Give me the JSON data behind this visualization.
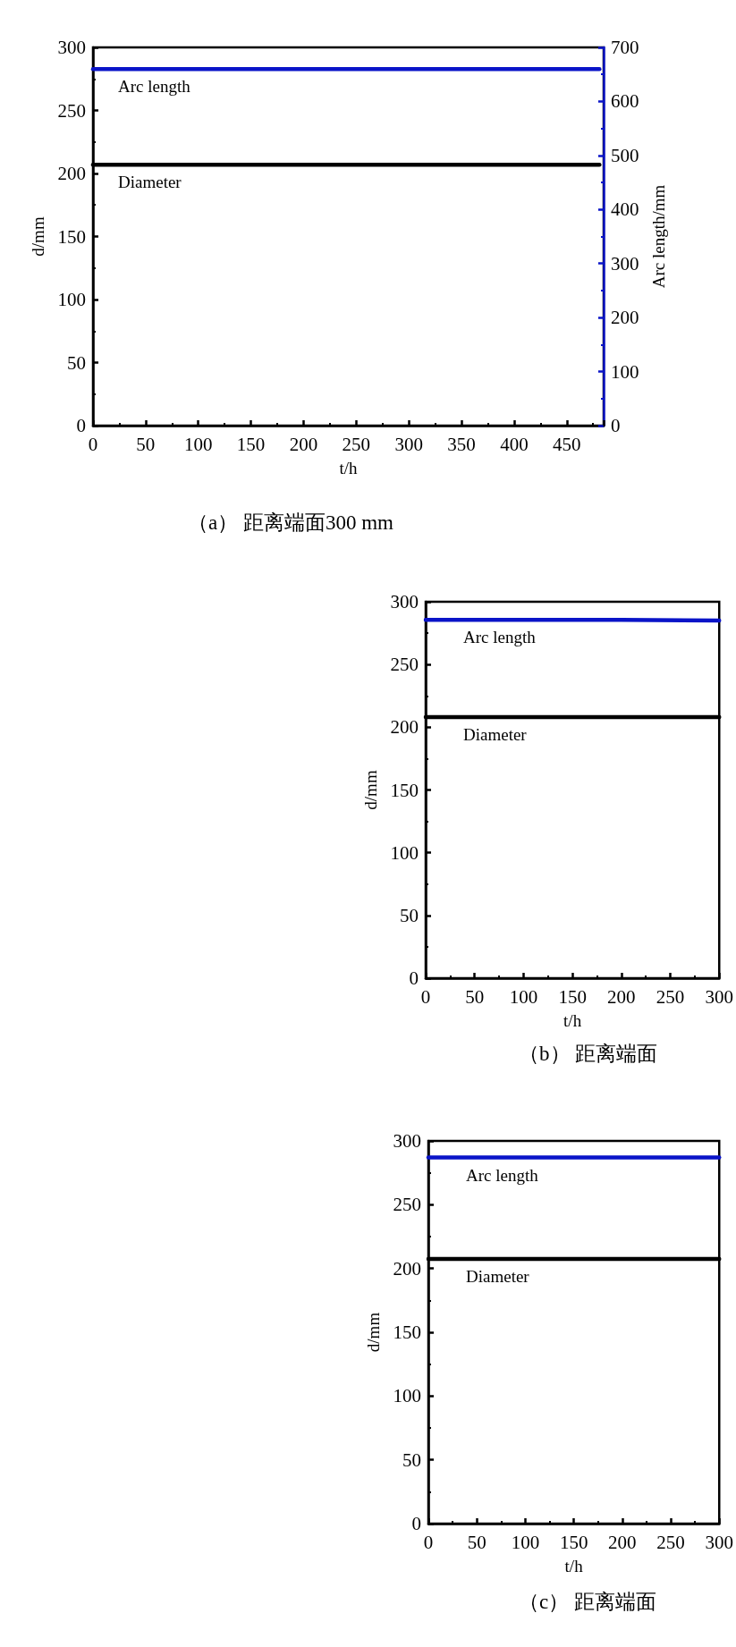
{
  "chart_data": [
    {
      "type": "line",
      "title": "（a） 距离端面300 mm",
      "annotations": [
        "Arc length",
        "Diameter"
      ],
      "xlabel": "t/h",
      "ylabel": "d/mm",
      "y2label": "Arc length/mm",
      "xlim": [
        0,
        485
      ],
      "xticks": [
        0,
        50,
        100,
        150,
        200,
        250,
        300,
        350,
        400,
        450
      ],
      "ylim": [
        0,
        300
      ],
      "yticks": [
        0,
        50,
        100,
        150,
        200,
        250,
        300
      ],
      "y2lim": [
        0,
        700
      ],
      "y2ticks": [
        0,
        100,
        200,
        300,
        400,
        500,
        600,
        700
      ],
      "line_style": "solid",
      "series": [
        {
          "color": "#0a14c8",
          "axis": "y2",
          "x": [
            0,
            120,
            240,
            360,
            481
          ],
          "values": [
            660,
            660,
            660,
            660,
            660
          ]
        },
        {
          "color": "#000000",
          "x": [
            0,
            120,
            240,
            360,
            481
          ],
          "values": [
            207,
            207,
            207,
            207,
            207
          ]
        }
      ]
    },
    {
      "type": "line",
      "title": "（b） 距离端面",
      "annotations": [
        "Arc length",
        "Diameter"
      ],
      "xlabel": "t/h",
      "ylabel": "d/mm",
      "xlim": [
        0,
        300
      ],
      "xticks": [
        0,
        50,
        100,
        150,
        200,
        250,
        300
      ],
      "ylim": [
        0,
        300
      ],
      "yticks": [
        0,
        50,
        100,
        150,
        200,
        250,
        300
      ],
      "line_style": "solid",
      "series": [
        {
          "color": "#0a14c8",
          "x": [
            0,
            100,
            200,
            300
          ],
          "values": [
            285.5,
            285.5,
            285.5,
            285
          ]
        },
        {
          "color": "#000000",
          "x": [
            0,
            100,
            200,
            300
          ],
          "values": [
            208,
            208,
            208,
            208
          ]
        }
      ]
    },
    {
      "type": "line",
      "title": "（c） 距离端面",
      "annotations": [
        "Arc length",
        "Diameter"
      ],
      "xlabel": "t/h",
      "ylabel": "d/mm",
      "xlim": [
        0,
        300
      ],
      "xticks": [
        0,
        50,
        100,
        150,
        200,
        250,
        300
      ],
      "ylim": [
        0,
        300
      ],
      "yticks": [
        0,
        50,
        100,
        150,
        200,
        250,
        300
      ],
      "line_style": "solid",
      "series": [
        {
          "color": "#0a14c8",
          "x": [
            0,
            100,
            200,
            300
          ],
          "values": [
            287,
            287,
            287,
            287
          ]
        },
        {
          "color": "#000000",
          "x": [
            0,
            100,
            200,
            300
          ],
          "values": [
            207.5,
            207.5,
            207.5,
            207.5
          ]
        }
      ]
    }
  ]
}
